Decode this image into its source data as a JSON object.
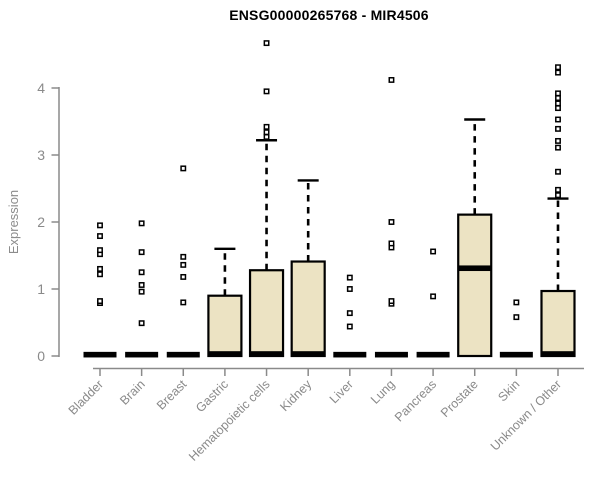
{
  "chart_data": {
    "type": "boxplot",
    "title": "ENSG00000265768 - MIR4506",
    "ylabel": "Expression",
    "ylim": [
      0,
      4.7
    ],
    "yticks": [
      0,
      1,
      2,
      3,
      4
    ],
    "grid": false,
    "legend": "none",
    "colors": {
      "box_fill": "#ece3c3",
      "box_border": "#000000",
      "median": "#000000",
      "axis": "#8a8a8a",
      "tick_label": "#8a8a8a",
      "title": "#000000",
      "outlier_fill": "#ffffff",
      "outlier_stroke": "#000000"
    },
    "categories": [
      "Bladder",
      "Brain",
      "Breast",
      "Gastric",
      "Hematopoietic cells",
      "Kidney",
      "Liver",
      "Lung",
      "Pancreas",
      "Prostate",
      "Skin",
      "Unknown / Other"
    ],
    "boxes": [
      {
        "category": "Bladder",
        "q1": 0,
        "median": 0.02,
        "q3": 0.03,
        "whisker_high": null,
        "outliers": [
          0.79,
          0.82,
          1.22,
          1.3,
          1.52,
          1.58,
          1.79,
          1.95
        ]
      },
      {
        "category": "Brain",
        "q1": 0,
        "median": 0.02,
        "q3": 0.03,
        "whisker_high": null,
        "outliers": [
          0.49,
          0.96,
          1.06,
          1.25,
          1.55,
          1.98
        ]
      },
      {
        "category": "Breast",
        "q1": 0,
        "median": 0.02,
        "q3": 0.03,
        "whisker_high": null,
        "outliers": [
          0.8,
          1.18,
          1.36,
          1.48,
          2.8
        ]
      },
      {
        "category": "Gastric",
        "q1": 0,
        "median": 0.03,
        "q3": 0.9,
        "whisker_high": 1.6,
        "outliers": []
      },
      {
        "category": "Hematopoietic cells",
        "q1": 0,
        "median": 0.03,
        "q3": 1.28,
        "whisker_high": 3.22,
        "outliers": [
          3.27,
          3.34,
          3.42,
          3.95,
          4.67
        ]
      },
      {
        "category": "Kidney",
        "q1": 0,
        "median": 0.03,
        "q3": 1.41,
        "whisker_high": 2.62,
        "outliers": []
      },
      {
        "category": "Liver",
        "q1": 0,
        "median": 0.02,
        "q3": 0.03,
        "whisker_high": null,
        "outliers": [
          0.44,
          0.64,
          1.0,
          1.17
        ]
      },
      {
        "category": "Lung",
        "q1": 0,
        "median": 0.02,
        "q3": 0.03,
        "whisker_high": null,
        "outliers": [
          0.78,
          0.82,
          1.62,
          1.68,
          2.0,
          4.12
        ]
      },
      {
        "category": "Pancreas",
        "q1": 0,
        "median": 0.02,
        "q3": 0.03,
        "whisker_high": null,
        "outliers": [
          0.89,
          1.56
        ]
      },
      {
        "category": "Prostate",
        "q1": 0,
        "median": 1.31,
        "q3": 2.11,
        "whisker_high": 3.53,
        "outliers": []
      },
      {
        "category": "Skin",
        "q1": 0,
        "median": 0.02,
        "q3": 0.03,
        "whisker_high": null,
        "outliers": [
          0.58,
          0.8
        ]
      },
      {
        "category": "Unknown / Other",
        "q1": 0,
        "median": 0.03,
        "q3": 0.97,
        "whisker_high": 2.35,
        "outliers": [
          2.4,
          2.48,
          2.75,
          3.11,
          3.21,
          3.39,
          3.53,
          3.7,
          3.77,
          3.85,
          3.92,
          4.23,
          4.31
        ]
      }
    ]
  }
}
